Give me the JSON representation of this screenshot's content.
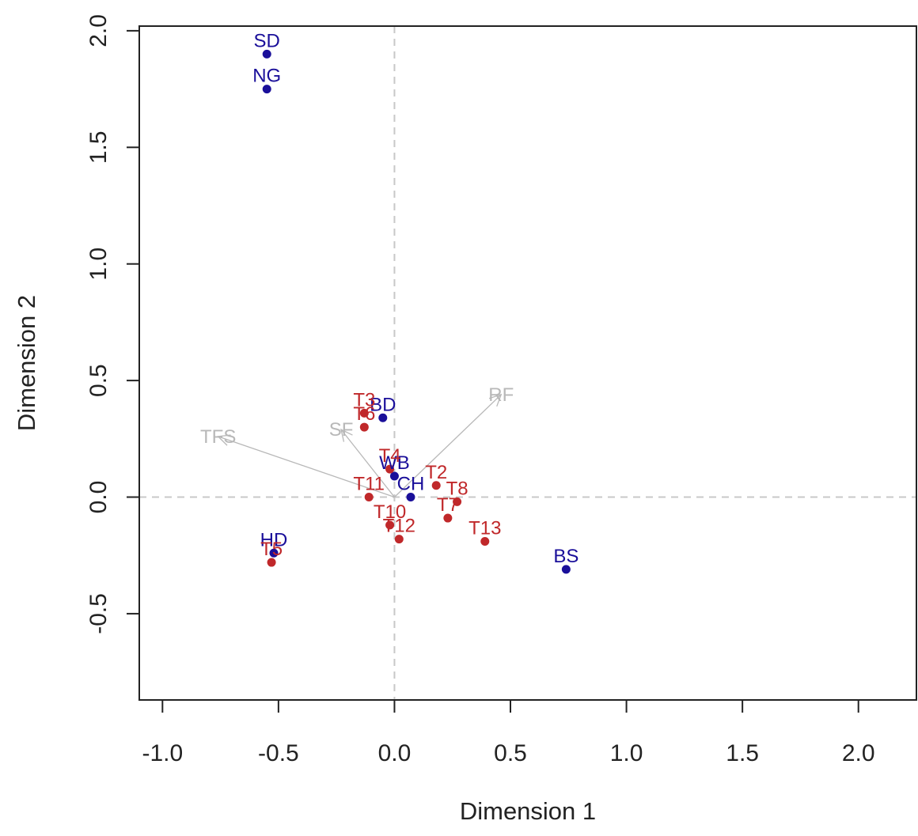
{
  "chart_data": {
    "type": "scatter",
    "xlabel": "Dimension 1",
    "ylabel": "Dimension 2",
    "xlim": [
      -1.1,
      2.25
    ],
    "ylim": [
      -0.87,
      2.02
    ],
    "xticks": [
      -1.0,
      -0.5,
      0.0,
      0.5,
      1.0,
      1.5,
      2.0
    ],
    "xtick_labels": [
      "-1.0",
      "-0.5",
      "0.0",
      "0.5",
      "1.0",
      "1.5",
      "2.0"
    ],
    "yticks": [
      -0.5,
      0.0,
      0.5,
      1.0,
      1.5,
      2.0
    ],
    "ytick_labels": [
      "-0.5",
      "0.0",
      "0.5",
      "1.0",
      "1.5",
      "2.0"
    ],
    "reference_lines": {
      "x": 0,
      "y": 0,
      "style": "dashed",
      "color": "#c8c8c8"
    },
    "series": [
      {
        "color": "#1a0f9a",
        "points": [
          {
            "label": "SD",
            "x": -0.55,
            "y": 1.9
          },
          {
            "label": "NG",
            "x": -0.55,
            "y": 1.75
          },
          {
            "label": "BD",
            "x": -0.05,
            "y": 0.34
          },
          {
            "label": "WB",
            "x": 0.0,
            "y": 0.09
          },
          {
            "label": "CH",
            "x": 0.07,
            "y": 0.0
          },
          {
            "label": "HD",
            "x": -0.52,
            "y": -0.24
          },
          {
            "label": "BS",
            "x": 0.74,
            "y": -0.31
          }
        ]
      },
      {
        "color": "#c0282a",
        "points": [
          {
            "label": "T3",
            "x": -0.13,
            "y": 0.36
          },
          {
            "label": "T6",
            "x": -0.13,
            "y": 0.3
          },
          {
            "label": "T4",
            "x": -0.02,
            "y": 0.12
          },
          {
            "label": "T2",
            "x": 0.18,
            "y": 0.05
          },
          {
            "label": "T8",
            "x": 0.27,
            "y": -0.02
          },
          {
            "label": "T11",
            "x": -0.11,
            "y": 0.0
          },
          {
            "label": "T7",
            "x": 0.23,
            "y": -0.09
          },
          {
            "label": "T10",
            "x": -0.02,
            "y": -0.12
          },
          {
            "label": "T12",
            "x": 0.02,
            "y": -0.18
          },
          {
            "label": "T13",
            "x": 0.39,
            "y": -0.19
          },
          {
            "label": "T5",
            "x": -0.53,
            "y": -0.28
          }
        ]
      }
    ],
    "vectors": {
      "color": "#b8b8b8",
      "items": [
        {
          "label": "TFS",
          "x": -0.76,
          "y": 0.26
        },
        {
          "label": "SF",
          "x": -0.23,
          "y": 0.29
        },
        {
          "label": "RF",
          "x": 0.46,
          "y": 0.44
        }
      ]
    }
  }
}
